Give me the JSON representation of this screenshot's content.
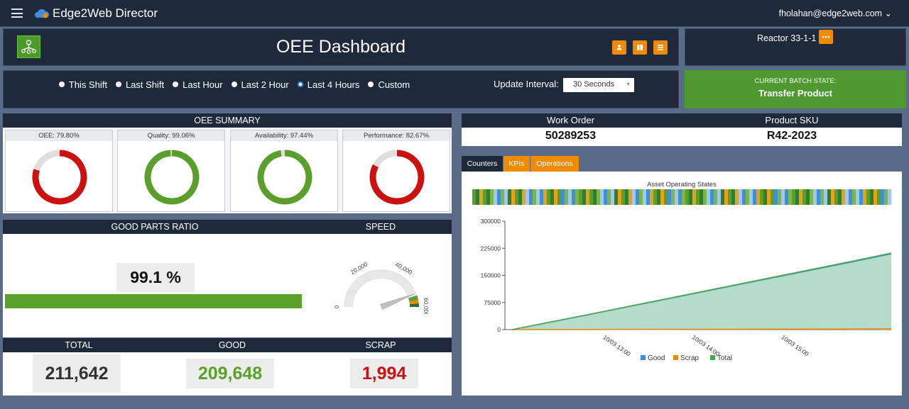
{
  "app": {
    "title": "Edge2Web Director",
    "user": "fholahan@edge2web.com ⌄"
  },
  "header": {
    "title": "OEE Dashboard"
  },
  "reactor": {
    "name": "Reactor 33-1-1"
  },
  "range": {
    "options": [
      {
        "label": "This Shift",
        "selected": false
      },
      {
        "label": "Last Shift",
        "selected": false
      },
      {
        "label": "Last Hour",
        "selected": false
      },
      {
        "label": "Last 2 Hour",
        "selected": false
      },
      {
        "label": "Last 4 Hours",
        "selected": true
      },
      {
        "label": "Custom",
        "selected": false
      }
    ],
    "update_label": "Update Interval:",
    "update_value": "30 Seconds"
  },
  "batch": {
    "label": "CURRENT BATCH STATE:",
    "value": "Transfer Product"
  },
  "oee_summary": {
    "title": "OEE SUMMARY",
    "cards": [
      {
        "label": "OEE: 79.80%",
        "value": 0.798,
        "color": "#cc1111"
      },
      {
        "label": "Quality: 99.06%",
        "value": 0.9906,
        "color": "#5a9e2c"
      },
      {
        "label": "Availability: 97.44%",
        "value": 0.9744,
        "color": "#5a9e2c"
      },
      {
        "label": "Performance: 82.67%",
        "value": 0.8267,
        "color": "#cc1111"
      }
    ]
  },
  "good_parts": {
    "title": "GOOD PARTS RATIO",
    "value": "99.1 %",
    "ratio": 0.991
  },
  "speed": {
    "title": "SPEED",
    "ticks": [
      "0",
      "20,000",
      "40,000",
      "60,000"
    ],
    "level": 0.88
  },
  "totals": {
    "total_label": "TOTAL",
    "total": "211,642",
    "good_label": "GOOD",
    "good": "209,648",
    "scrap_label": "SCRAP",
    "scrap": "1,994"
  },
  "work": {
    "order_label": "Work Order",
    "order": "50289253",
    "sku_label": "Product SKU",
    "sku": "R42-2023"
  },
  "tabs": [
    "Counters",
    "KPIs",
    "Operations"
  ],
  "chart_data": {
    "type": "area",
    "title": "Asset Operating States",
    "x_ticks": [
      "10/03 13:00",
      "10/03 14:00",
      "10/03 15:00"
    ],
    "y_ticks": [
      "300000",
      "225000",
      "150000",
      "75000",
      "0"
    ],
    "ylim": [
      0,
      300000
    ],
    "x": [
      0,
      0.1,
      0.2,
      0.3,
      0.4,
      0.5,
      0.6,
      0.7,
      0.8,
      0.9,
      1.0
    ],
    "series": [
      {
        "name": "Good",
        "color": "#3f8fd8",
        "values": [
          0,
          20500,
          41000,
          62000,
          83000,
          104000,
          125000,
          146000,
          167000,
          188000,
          209648
        ]
      },
      {
        "name": "Scrap",
        "color": "#e88a1a",
        "values": [
          0,
          200,
          400,
          600,
          800,
          1000,
          1200,
          1400,
          1600,
          1800,
          1994
        ]
      },
      {
        "name": "Total",
        "color": "#4aa84a",
        "values": [
          0,
          20700,
          41400,
          62600,
          83800,
          105000,
          126200,
          147400,
          168600,
          189800,
          211642
        ]
      }
    ],
    "legend": "bottom",
    "state_colors": [
      "#5a9e2c",
      "#3f8fd8",
      "#e8a21a",
      "#a0c8e8",
      "#2e7d32",
      "#7ab648"
    ]
  }
}
